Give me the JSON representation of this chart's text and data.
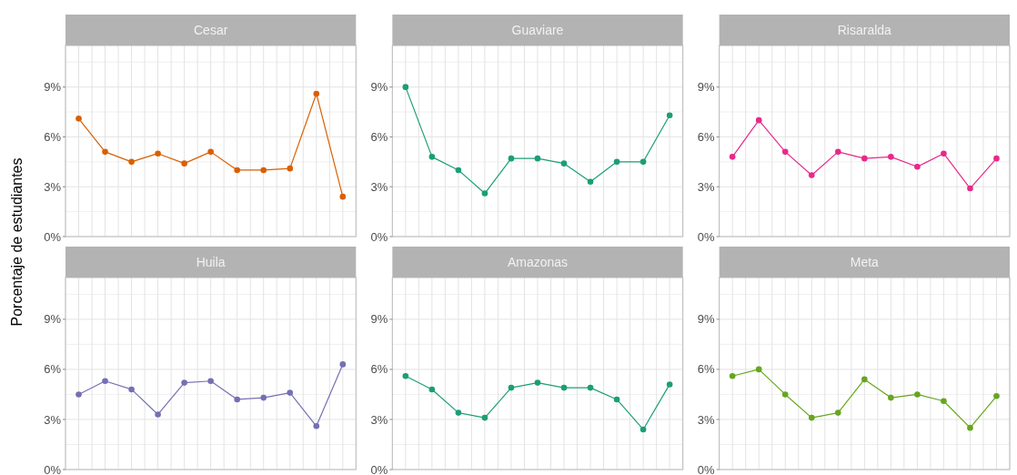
{
  "chart_data": [
    {
      "type": "line",
      "title": "Cesar",
      "ylabel": "Porcentaje de estudiantes",
      "categories": [
        null,
        null,
        null,
        null,
        null,
        null,
        null,
        null,
        null,
        null,
        null
      ],
      "series": [
        {
          "color": "#d95f02",
          "values": [
            7.1,
            5.1,
            4.5,
            5.0,
            4.4,
            5.1,
            4.0,
            4.0,
            4.1,
            8.6,
            2.4
          ]
        }
      ],
      "ylim": [
        0,
        11.5
      ],
      "yticks": [
        {
          "value": 0,
          "label": "0%"
        },
        {
          "value": 3,
          "label": "3%"
        },
        {
          "value": 6,
          "label": "6%"
        },
        {
          "value": 9,
          "label": "9%"
        }
      ],
      "grid": true,
      "marker": "circle",
      "tick_labels": "y"
    },
    {
      "type": "line",
      "title": "Guaviare",
      "categories": [
        null,
        null,
        null,
        null,
        null,
        null,
        null,
        null,
        null,
        null,
        null
      ],
      "series": [
        {
          "color": "#1b9e77",
          "values": [
            9.0,
            4.8,
            4.0,
            2.6,
            4.7,
            4.7,
            4.4,
            3.3,
            4.5,
            4.5,
            7.3
          ]
        }
      ],
      "ylim": [
        0,
        11.5
      ],
      "yticks": [
        {
          "value": 0,
          "label": "0%"
        },
        {
          "value": 3,
          "label": "3%"
        },
        {
          "value": 6,
          "label": "6%"
        },
        {
          "value": 9,
          "label": "9%"
        }
      ],
      "grid": true,
      "marker": "circle",
      "tick_labels": "y"
    },
    {
      "type": "line",
      "title": "Risaralda",
      "categories": [
        null,
        null,
        null,
        null,
        null,
        null,
        null,
        null,
        null,
        null,
        null
      ],
      "series": [
        {
          "color": "#e7298a",
          "values": [
            4.8,
            7.0,
            5.1,
            3.7,
            5.1,
            4.7,
            4.8,
            4.2,
            5.0,
            2.9,
            4.7
          ]
        }
      ],
      "ylim": [
        0,
        11.5
      ],
      "yticks": [
        {
          "value": 0,
          "label": "0%"
        },
        {
          "value": 3,
          "label": "3%"
        },
        {
          "value": 6,
          "label": "6%"
        },
        {
          "value": 9,
          "label": "9%"
        }
      ],
      "grid": true,
      "marker": "circle",
      "tick_labels": "y"
    },
    {
      "type": "line",
      "title": "Huila",
      "categories": [
        null,
        null,
        null,
        null,
        null,
        null,
        null,
        null,
        null,
        null,
        null
      ],
      "series": [
        {
          "color": "#7570b3",
          "values": [
            4.5,
            5.3,
            4.8,
            3.3,
            5.2,
            5.3,
            4.2,
            4.3,
            4.6,
            2.6,
            6.3
          ]
        }
      ],
      "ylim": [
        0,
        11.5
      ],
      "yticks": [
        {
          "value": 0,
          "label": "0%"
        },
        {
          "value": 3,
          "label": "3%"
        },
        {
          "value": 6,
          "label": "6%"
        },
        {
          "value": 9,
          "label": "9%"
        }
      ],
      "grid": true,
      "marker": "circle",
      "tick_labels": "y"
    },
    {
      "type": "line",
      "title": "Amazonas",
      "categories": [
        null,
        null,
        null,
        null,
        null,
        null,
        null,
        null,
        null,
        null,
        null
      ],
      "series": [
        {
          "color": "#1b9e77",
          "values": [
            5.6,
            4.8,
            3.4,
            3.1,
            4.9,
            5.2,
            4.9,
            4.9,
            4.2,
            2.4,
            5.1
          ]
        }
      ],
      "ylim": [
        0,
        11.5
      ],
      "yticks": [
        {
          "value": 0,
          "label": "0%"
        },
        {
          "value": 3,
          "label": "3%"
        },
        {
          "value": 6,
          "label": "6%"
        },
        {
          "value": 9,
          "label": "9%"
        }
      ],
      "grid": true,
      "marker": "circle",
      "tick_labels": "y"
    },
    {
      "type": "line",
      "title": "Meta",
      "categories": [
        null,
        null,
        null,
        null,
        null,
        null,
        null,
        null,
        null,
        null,
        null
      ],
      "series": [
        {
          "color": "#66a61e",
          "values": [
            5.6,
            6.0,
            4.5,
            3.1,
            3.4,
            5.4,
            4.3,
            4.5,
            4.1,
            2.5,
            4.4
          ]
        }
      ],
      "ylim": [
        0,
        11.5
      ],
      "yticks": [
        {
          "value": 0,
          "label": "0%"
        },
        {
          "value": 3,
          "label": "3%"
        },
        {
          "value": 6,
          "label": "6%"
        },
        {
          "value": 9,
          "label": "9%"
        }
      ],
      "grid": true,
      "marker": "circle",
      "tick_labels": "y"
    }
  ]
}
